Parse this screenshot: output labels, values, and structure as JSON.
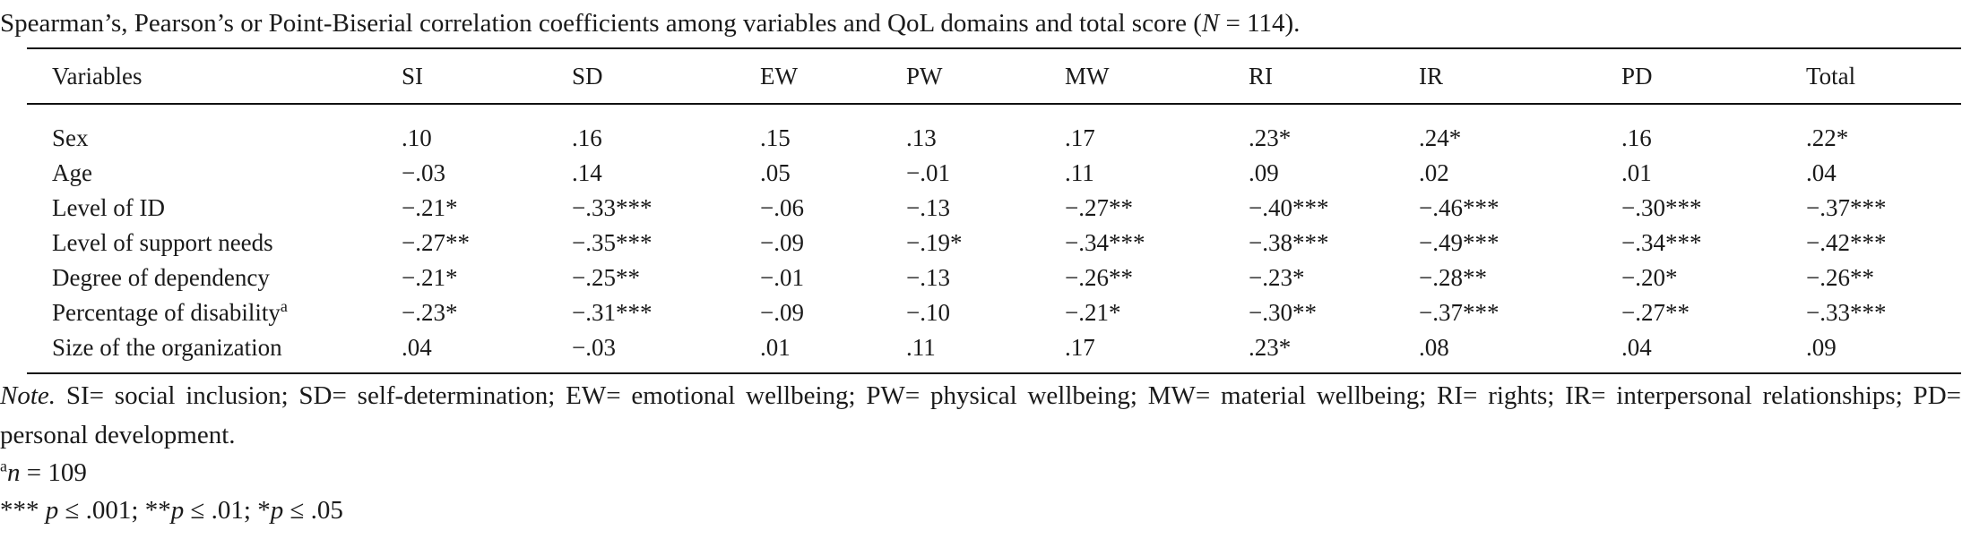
{
  "caption": {
    "prefix": "Spearman’s, Pearson’s or Point-Biserial correlation coefficients among variables and QoL domains and total score (",
    "n_symbol": "N",
    "n_value": " = 114)."
  },
  "table": {
    "headers": [
      "Variables",
      "SI",
      "SD",
      "EW",
      "PW",
      "MW",
      "RI",
      "IR",
      "PD",
      "Total"
    ],
    "rows": [
      {
        "label": "Sex",
        "label_sup": "",
        "values": [
          ".10",
          ".16",
          ".15",
          ".13",
          ".17",
          ".23*",
          ".24*",
          ".16",
          ".22*"
        ]
      },
      {
        "label": "Age",
        "label_sup": "",
        "values": [
          "−.03",
          ".14",
          ".05",
          "−.01",
          ".11",
          ".09",
          ".02",
          ".01",
          ".04"
        ]
      },
      {
        "label": "Level of ID",
        "label_sup": "",
        "values": [
          "−.21*",
          "−.33***",
          "−.06",
          "−.13",
          "−.27**",
          "−.40***",
          "−.46***",
          "−.30***",
          "−.37***"
        ]
      },
      {
        "label": "Level of support needs",
        "label_sup": "",
        "values": [
          "−.27**",
          "−.35***",
          "−.09",
          "−.19*",
          "−.34***",
          "−.38***",
          "−.49***",
          "−.34***",
          "−.42***"
        ]
      },
      {
        "label": "Degree of dependency",
        "label_sup": "",
        "values": [
          "−.21*",
          "−.25**",
          "−.01",
          "−.13",
          "−.26**",
          "−.23*",
          "−.28**",
          "−.20*",
          "−.26**"
        ]
      },
      {
        "label": "Percentage of disability",
        "label_sup": "a",
        "values": [
          "−.23*",
          "−.31***",
          "−.09",
          "−.10",
          "−.21*",
          "−.30**",
          "−.37***",
          "−.27**",
          "−.33***"
        ]
      },
      {
        "label": "Size of the organization",
        "label_sup": "",
        "values": [
          ".04",
          "−.03",
          ".01",
          ".11",
          ".17",
          ".23*",
          ".08",
          ".04",
          ".09"
        ]
      }
    ]
  },
  "note": {
    "label": "Note.",
    "text": " SI= social inclusion; SD= self-determination; EW= emotional wellbeing; PW= physical wellbeing; MW= material wellbeing; RI= rights; IR= interpersonal relationships; PD= personal development.",
    "footnote_a_sup": "a",
    "footnote_a_n": "n",
    "footnote_a_text": " = 109",
    "sig_part1": "*** ",
    "sig_p1": "p",
    "sig_part2": " ≤ .001; **",
    "sig_p2": "p",
    "sig_part3": " ≤ .01; *",
    "sig_p3": "p",
    "sig_part4": " ≤ .05"
  }
}
